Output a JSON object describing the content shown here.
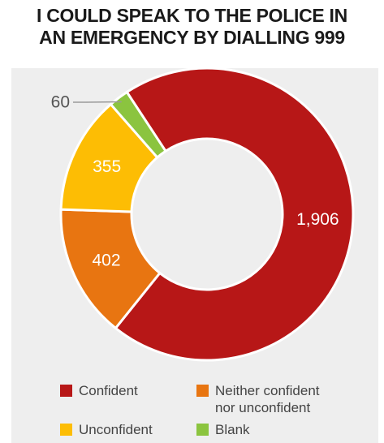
{
  "chart_data": {
    "type": "pie",
    "title_lines": [
      "I COULD SPEAK TO THE POLICE IN",
      "AN EMERGENCY BY DIALLING 999"
    ],
    "donut": true,
    "slices": [
      {
        "label": "Confident",
        "value": 1906,
        "value_label": "1,906",
        "color": "#b71717"
      },
      {
        "label": "Neither confident\nnor unconfident",
        "value": 402,
        "value_label": "402",
        "color": "#e87511"
      },
      {
        "label": "Unconfident",
        "value": 355,
        "value_label": "355",
        "color": "#fdbd04"
      },
      {
        "label": "Blank",
        "value": 60,
        "value_label": "60",
        "color": "#8bc43f"
      }
    ],
    "legend_placement": "bottom"
  }
}
